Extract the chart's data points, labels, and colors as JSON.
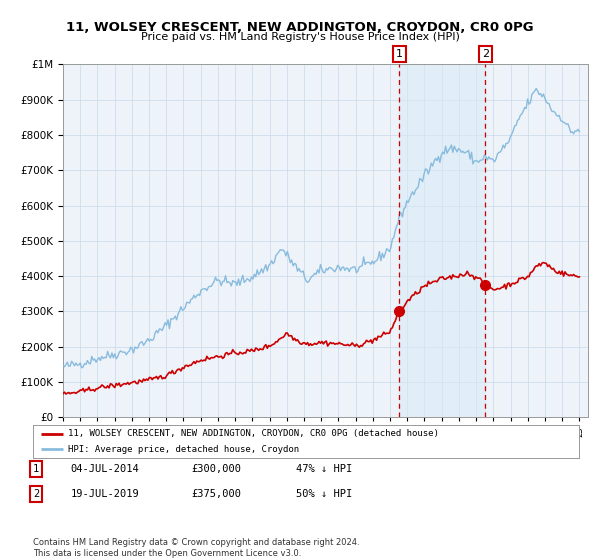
{
  "title": "11, WOLSEY CRESCENT, NEW ADDINGTON, CROYDON, CR0 0PG",
  "subtitle": "Price paid vs. HM Land Registry's House Price Index (HPI)",
  "legend_line1": "11, WOLSEY CRESCENT, NEW ADDINGTON, CROYDON, CR0 0PG (detached house)",
  "legend_line2": "HPI: Average price, detached house, Croydon",
  "transaction1_date": "04-JUL-2014",
  "transaction1_price": "£300,000",
  "transaction1_hpi": "47% ↓ HPI",
  "transaction1_year": 2014.54,
  "transaction1_value": 300000,
  "transaction2_date": "19-JUL-2019",
  "transaction2_price": "£375,000",
  "transaction2_hpi": "50% ↓ HPI",
  "transaction2_year": 2019.54,
  "transaction2_value": 375000,
  "hpi_color": "#88bbdd",
  "price_color": "#cc0000",
  "vline_color": "#cc0000",
  "shading_color": "#d8eaf5",
  "background_color": "#eef3fa",
  "grid_color": "#c8d8e8",
  "footer": "Contains HM Land Registry data © Crown copyright and database right 2024.\nThis data is licensed under the Open Government Licence v3.0.",
  "ylim": [
    0,
    1000000
  ],
  "xlim_start": 1995.0,
  "xlim_end": 2025.5,
  "hpi_anchors_x": [
    1995.0,
    1996.0,
    1997.0,
    1998.0,
    1999.0,
    2000.0,
    2001.0,
    2002.0,
    2003.0,
    2004.0,
    2005.0,
    2006.0,
    2007.0,
    2007.7,
    2008.7,
    2009.2,
    2010.0,
    2011.0,
    2012.0,
    2013.0,
    2014.0,
    2014.5,
    2015.0,
    2016.0,
    2017.0,
    2017.5,
    2018.0,
    2018.5,
    2019.0,
    2019.5,
    2020.0,
    2020.5,
    2021.0,
    2021.5,
    2022.0,
    2022.5,
    2023.0,
    2023.5,
    2024.0,
    2024.5,
    2025.0
  ],
  "hpi_anchors_y": [
    143000,
    152000,
    167000,
    178000,
    192000,
    218000,
    260000,
    310000,
    358000,
    388000,
    378000,
    398000,
    430000,
    478000,
    415000,
    388000,
    415000,
    425000,
    418000,
    438000,
    478000,
    560000,
    610000,
    685000,
    752000,
    762000,
    758000,
    748000,
    722000,
    738000,
    725000,
    758000,
    788000,
    848000,
    888000,
    928000,
    905000,
    865000,
    848000,
    808000,
    815000
  ],
  "price_anchors_x": [
    1995.0,
    1996.0,
    1997.0,
    1998.0,
    1999.0,
    2000.0,
    2001.0,
    2002.0,
    2003.0,
    2004.0,
    2005.0,
    2006.0,
    2007.0,
    2007.5,
    2008.0,
    2008.5,
    2009.0,
    2009.5,
    2010.0,
    2011.0,
    2012.0,
    2013.0,
    2014.0,
    2014.54,
    2015.0,
    2016.0,
    2017.0,
    2018.0,
    2018.5,
    2019.0,
    2019.54,
    2020.0,
    2020.5,
    2021.0,
    2021.5,
    2022.0,
    2022.5,
    2023.0,
    2023.5,
    2024.0,
    2024.5,
    2025.0
  ],
  "price_anchors_y": [
    65000,
    72000,
    83000,
    90000,
    98000,
    105000,
    118000,
    142000,
    162000,
    172000,
    182000,
    188000,
    202000,
    218000,
    238000,
    220000,
    210000,
    208000,
    212000,
    208000,
    202000,
    218000,
    242000,
    300000,
    328000,
    372000,
    392000,
    402000,
    408000,
    398000,
    375000,
    362000,
    368000,
    378000,
    388000,
    398000,
    428000,
    438000,
    418000,
    408000,
    402000,
    398000
  ]
}
